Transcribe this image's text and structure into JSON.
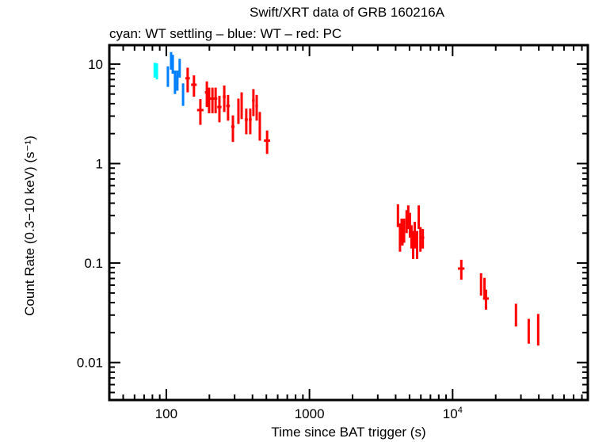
{
  "chart_data": {
    "type": "scatter",
    "title": "Swift/XRT data of GRB 160216A",
    "subtitle": "cyan: WT settling – blue: WT – red: PC",
    "xlabel": "Time since BAT trigger (s)",
    "ylabel": "Count Rate (0.3−10 keV) (s⁻¹)",
    "xscale": "log",
    "yscale": "log",
    "xlim": [
      40,
      88000
    ],
    "ylim": [
      0.0042,
      15.5
    ],
    "x_ticks": [
      {
        "v": 100,
        "label": "100"
      },
      {
        "v": 1000,
        "label": "1000"
      },
      {
        "v": 10000,
        "label": "10⁴"
      }
    ],
    "y_ticks": [
      {
        "v": 10,
        "label": "10"
      },
      {
        "v": 1,
        "label": "1"
      },
      {
        "v": 0.1,
        "label": "0.1"
      },
      {
        "v": 0.01,
        "label": "0.01"
      }
    ],
    "grid": false,
    "colors": {
      "cyan": "#00ffff",
      "blue": "#0080ff",
      "red": "#ff0000"
    },
    "series": [
      {
        "mode": "WT settling",
        "color": "#00ffff",
        "points": [
          [
            83,
            1.5,
            8.8,
            1.5
          ],
          [
            86,
            1.5,
            8.6,
            1.6
          ]
        ]
      },
      {
        "mode": "WT",
        "color": "#0080ff",
        "points": [
          [
            102.6,
            1.5,
            7.7,
            1.8
          ],
          [
            108,
            1.5,
            11,
            2.2
          ],
          [
            111,
            1.5,
            10.2,
            2.2
          ],
          [
            115,
            1.5,
            6.8,
            1.8
          ],
          [
            119.5,
            2,
            7.0,
            1.6
          ],
          [
            124,
            1.5,
            9.3,
            2.0
          ],
          [
            131,
            2,
            5.1,
            1.3
          ]
        ]
      },
      {
        "mode": "PC",
        "color": "#ff0000",
        "points": [
          [
            141,
            5,
            7.2,
            2.0
          ],
          [
            156,
            7,
            6.2,
            1.5
          ],
          [
            173,
            9,
            3.45,
            1.0
          ],
          [
            192,
            6,
            5.2,
            1.5
          ],
          [
            199,
            6,
            4.5,
            1.3
          ],
          [
            210,
            6,
            4.5,
            1.3
          ],
          [
            221,
            6,
            4.5,
            1.3
          ],
          [
            235,
            8,
            3.7,
            1.1
          ],
          [
            254,
            6,
            4.7,
            1.4
          ],
          [
            270,
            8,
            3.8,
            1.1
          ],
          [
            292,
            8,
            2.35,
            0.7
          ],
          [
            319,
            6,
            3.5,
            1.0
          ],
          [
            336,
            6,
            4.0,
            1.2
          ],
          [
            362,
            9,
            2.77,
            0.8
          ],
          [
            386,
            9,
            2.77,
            0.8
          ],
          [
            406,
            9,
            4.3,
            1.3
          ],
          [
            428,
            9,
            3.8,
            1.1
          ],
          [
            450,
            6,
            2.5,
            0.8
          ],
          [
            506,
            25,
            1.7,
            0.45
          ],
          [
            4150,
            40,
            0.31,
            0.08
          ],
          [
            4290,
            50,
            0.19,
            0.06
          ],
          [
            4405,
            50,
            0.22,
            0.06
          ],
          [
            4460,
            50,
            0.21,
            0.06
          ],
          [
            4580,
            60,
            0.22,
            0.06
          ],
          [
            4770,
            60,
            0.27,
            0.07
          ],
          [
            4900,
            60,
            0.3,
            0.08
          ],
          [
            5030,
            60,
            0.25,
            0.07
          ],
          [
            5160,
            60,
            0.19,
            0.05
          ],
          [
            5300,
            80,
            0.16,
            0.05
          ],
          [
            5440,
            80,
            0.2,
            0.06
          ],
          [
            5650,
            80,
            0.16,
            0.05
          ],
          [
            5800,
            60,
            0.3,
            0.08
          ],
          [
            5960,
            80,
            0.18,
            0.05
          ],
          [
            6190,
            150,
            0.18,
            0.04
          ],
          [
            11500,
            600,
            0.088,
            0.02
          ],
          [
            15800,
            200,
            0.063,
            0.016
          ],
          [
            16700,
            300,
            0.057,
            0.014
          ],
          [
            17100,
            800,
            0.044,
            0.01
          ],
          [
            27700,
            200,
            0.031,
            0.008
          ],
          [
            34000,
            600,
            0.0215,
            0.006
          ],
          [
            39600,
            300,
            0.0228,
            0.008
          ]
        ]
      }
    ]
  }
}
